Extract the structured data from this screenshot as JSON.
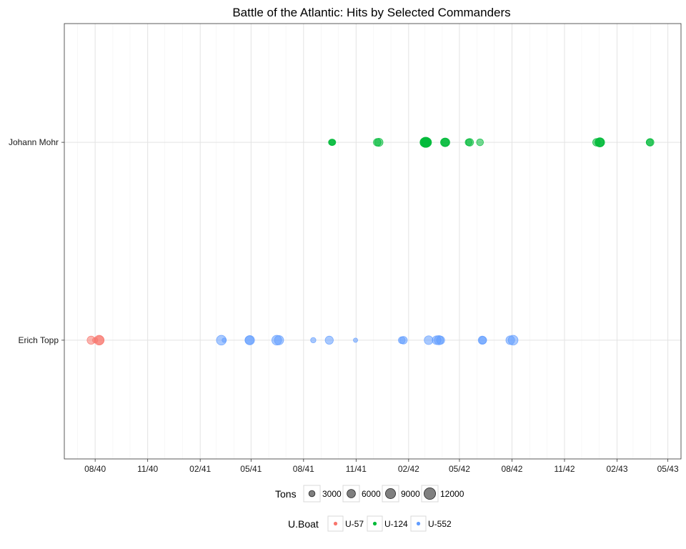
{
  "chart_data": {
    "type": "scatter",
    "title": "Battle of the Atlantic: Hits by Selected Commanders",
    "xlabel": "",
    "ylabel": "",
    "x_axis": {
      "type": "date",
      "range": [
        "1940-06-08",
        "1943-05-24"
      ],
      "tick_labels": [
        "08/40",
        "11/40",
        "02/41",
        "05/41",
        "08/41",
        "11/41",
        "02/42",
        "05/42",
        "08/42",
        "11/42",
        "02/43",
        "05/43"
      ],
      "tick_dates": [
        "1940-08-01",
        "1940-11-01",
        "1941-02-01",
        "1941-05-01",
        "1941-08-01",
        "1941-11-01",
        "1942-02-01",
        "1942-05-01",
        "1942-08-01",
        "1942-11-01",
        "1943-02-01",
        "1943-05-01"
      ]
    },
    "y_axis": {
      "type": "category",
      "categories": [
        "Erich Topp",
        "Johann Mohr"
      ]
    },
    "grid": true,
    "series": [
      {
        "name": "U-57",
        "commander": "Erich Topp",
        "color": "#F8766D",
        "points": [
          {
            "date": "1940-07-25",
            "tons": 7000
          },
          {
            "date": "1940-08-01",
            "tons": 3000
          },
          {
            "date": "1940-08-08",
            "tons": 10000
          },
          {
            "date": "1940-08-09",
            "tons": 8000
          }
        ]
      },
      {
        "name": "U-124",
        "commander": "Johann Mohr",
        "color": "#00BA38",
        "points": [
          {
            "date": "1941-09-19",
            "tons": 4000
          },
          {
            "date": "1941-09-20",
            "tons": 4500
          },
          {
            "date": "1941-09-21",
            "tons": 4000
          },
          {
            "date": "1941-12-08",
            "tons": 6000
          },
          {
            "date": "1941-12-11",
            "tons": 7000
          },
          {
            "date": "1942-03-01",
            "tons": 9000
          },
          {
            "date": "1942-03-02",
            "tons": 10000
          },
          {
            "date": "1942-03-03",
            "tons": 11000
          },
          {
            "date": "1942-03-04",
            "tons": 10000
          },
          {
            "date": "1942-03-05",
            "tons": 9000
          },
          {
            "date": "1942-04-05",
            "tons": 7000
          },
          {
            "date": "1942-04-06",
            "tons": 8000
          },
          {
            "date": "1942-04-07",
            "tons": 7000
          },
          {
            "date": "1942-05-17",
            "tons": 5000
          },
          {
            "date": "1942-05-19",
            "tons": 6000
          },
          {
            "date": "1942-06-06",
            "tons": 5000
          },
          {
            "date": "1942-12-27",
            "tons": 6000
          },
          {
            "date": "1943-01-01",
            "tons": 8000
          },
          {
            "date": "1943-01-02",
            "tons": 9000
          },
          {
            "date": "1943-01-03",
            "tons": 7000
          },
          {
            "date": "1943-03-30",
            "tons": 5000
          },
          {
            "date": "1943-03-31",
            "tons": 6000
          }
        ]
      },
      {
        "name": "U-552",
        "commander": "Erich Topp",
        "color": "#619CFF",
        "points": [
          {
            "date": "1941-03-10",
            "tons": 10000
          },
          {
            "date": "1941-03-15",
            "tons": 2000
          },
          {
            "date": "1941-04-28",
            "tons": 8000
          },
          {
            "date": "1941-04-29",
            "tons": 9000
          },
          {
            "date": "1941-06-15",
            "tons": 10000
          },
          {
            "date": "1941-06-19",
            "tons": 9000
          },
          {
            "date": "1941-08-18",
            "tons": 3000
          },
          {
            "date": "1941-09-15",
            "tons": 7000
          },
          {
            "date": "1941-10-31",
            "tons": 2000
          },
          {
            "date": "1942-01-20",
            "tons": 5000
          },
          {
            "date": "1942-01-23",
            "tons": 6000
          },
          {
            "date": "1942-03-08",
            "tons": 8000
          },
          {
            "date": "1942-03-22",
            "tons": 8000
          },
          {
            "date": "1942-03-26",
            "tons": 9000
          },
          {
            "date": "1942-03-29",
            "tons": 7000
          },
          {
            "date": "1942-06-10",
            "tons": 7000
          },
          {
            "date": "1942-06-11",
            "tons": 6000
          },
          {
            "date": "1942-07-29",
            "tons": 8000
          },
          {
            "date": "1942-08-03",
            "tons": 10000
          }
        ]
      }
    ],
    "legends": [
      {
        "title": "Tons",
        "kind": "size",
        "entries": [
          {
            "label": "3000",
            "value": 3000
          },
          {
            "label": "6000",
            "value": 6000
          },
          {
            "label": "9000",
            "value": 9000
          },
          {
            "label": "12000",
            "value": 12000
          }
        ],
        "placement": "bottom"
      },
      {
        "title": "U.Boat",
        "kind": "color",
        "entries": [
          {
            "label": "U-57",
            "color": "#F8766D"
          },
          {
            "label": "U-124",
            "color": "#00BA38"
          },
          {
            "label": "U-552",
            "color": "#619CFF"
          }
        ],
        "placement": "bottom"
      }
    ]
  }
}
